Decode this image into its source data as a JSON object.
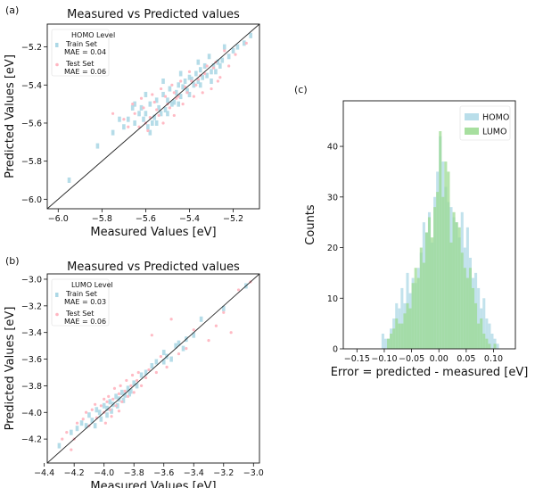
{
  "chart_data": [
    {
      "panel_label": "(a)",
      "type": "scatter",
      "title": "Measured vs Predicted values",
      "xlabel": "Measured Values [eV]",
      "ylabel": "Predicted Values [eV]",
      "xlim": [
        -6.05,
        -5.08
      ],
      "ylim": [
        -6.05,
        -5.08
      ],
      "xticks": [
        -6.0,
        -5.8,
        -5.6,
        -5.4,
        -5.2
      ],
      "yticks": [
        -6.0,
        -5.8,
        -5.6,
        -5.4,
        -5.2
      ],
      "xtick_labels": [
        "−6.0",
        "−5.8",
        "−5.6",
        "−5.4",
        "−5.2"
      ],
      "ytick_labels": [
        "−6.0",
        "−5.8",
        "−5.6",
        "−5.4",
        "−5.2"
      ],
      "legend": {
        "title": "HOMO Level",
        "entries": [
          {
            "label": "Train Set",
            "sub": "MAE = 0.04",
            "color": "#add8e6"
          },
          {
            "label": "Test Set",
            "sub": "MAE = 0.06",
            "color": "#ffb6c1"
          }
        ],
        "position": "top-left"
      },
      "reference_line": "y = x",
      "series": [
        {
          "name": "Train Set",
          "mae": 0.04,
          "color": "#add8e6",
          "points": [
            [
              -5.95,
              -5.9
            ],
            [
              -5.82,
              -5.72
            ],
            [
              -5.75,
              -5.65
            ],
            [
              -5.7,
              -5.62
            ],
            [
              -5.68,
              -5.58
            ],
            [
              -5.65,
              -5.6
            ],
            [
              -5.63,
              -5.55
            ],
            [
              -5.62,
              -5.52
            ],
            [
              -5.6,
              -5.55
            ],
            [
              -5.58,
              -5.5
            ],
            [
              -5.57,
              -5.6
            ],
            [
              -5.55,
              -5.48
            ],
            [
              -5.54,
              -5.52
            ],
            [
              -5.52,
              -5.45
            ],
            [
              -5.5,
              -5.48
            ],
            [
              -5.49,
              -5.42
            ],
            [
              -5.48,
              -5.5
            ],
            [
              -5.46,
              -5.44
            ],
            [
              -5.45,
              -5.4
            ],
            [
              -5.44,
              -5.46
            ],
            [
              -5.42,
              -5.38
            ],
            [
              -5.41,
              -5.43
            ],
            [
              -5.4,
              -5.36
            ],
            [
              -5.38,
              -5.4
            ],
            [
              -5.37,
              -5.34
            ],
            [
              -5.36,
              -5.38
            ],
            [
              -5.35,
              -5.32
            ],
            [
              -5.34,
              -5.36
            ],
            [
              -5.33,
              -5.3
            ],
            [
              -5.32,
              -5.35
            ],
            [
              -5.3,
              -5.33
            ],
            [
              -5.29,
              -5.3
            ],
            [
              -5.28,
              -5.33
            ],
            [
              -5.27,
              -5.28
            ],
            [
              -5.26,
              -5.3
            ],
            [
              -5.25,
              -5.27
            ],
            [
              -5.22,
              -5.25
            ],
            [
              -5.2,
              -5.22
            ],
            [
              -5.18,
              -5.2
            ],
            [
              -5.15,
              -5.18
            ],
            [
              -5.12,
              -5.14
            ],
            [
              -5.59,
              -5.62
            ],
            [
              -5.56,
              -5.57
            ],
            [
              -5.53,
              -5.55
            ],
            [
              -5.51,
              -5.53
            ],
            [
              -5.47,
              -5.49
            ],
            [
              -5.43,
              -5.41
            ],
            [
              -5.39,
              -5.37
            ],
            [
              -5.65,
              -5.5
            ],
            [
              -5.6,
              -5.45
            ],
            [
              -5.58,
              -5.65
            ],
            [
              -5.61,
              -5.58
            ],
            [
              -5.55,
              -5.6
            ],
            [
              -5.5,
              -5.55
            ],
            [
              -5.45,
              -5.5
            ],
            [
              -5.4,
              -5.45
            ],
            [
              -5.35,
              -5.4
            ],
            [
              -5.3,
              -5.38
            ],
            [
              -5.72,
              -5.58
            ],
            [
              -5.66,
              -5.52
            ],
            [
              -5.52,
              -5.38
            ],
            [
              -5.44,
              -5.34
            ],
            [
              -5.36,
              -5.28
            ],
            [
              -5.31,
              -5.25
            ],
            [
              -5.24,
              -5.2
            ]
          ]
        },
        {
          "name": "Test Set",
          "mae": 0.06,
          "color": "#ffb6c1",
          "points": [
            [
              -5.7,
              -5.58
            ],
            [
              -5.66,
              -5.5
            ],
            [
              -5.62,
              -5.47
            ],
            [
              -5.6,
              -5.6
            ],
            [
              -5.57,
              -5.45
            ],
            [
              -5.55,
              -5.53
            ],
            [
              -5.53,
              -5.42
            ],
            [
              -5.52,
              -5.6
            ],
            [
              -5.5,
              -5.5
            ],
            [
              -5.48,
              -5.4
            ],
            [
              -5.47,
              -5.56
            ],
            [
              -5.46,
              -5.47
            ],
            [
              -5.44,
              -5.38
            ],
            [
              -5.43,
              -5.5
            ],
            [
              -5.41,
              -5.44
            ],
            [
              -5.4,
              -5.33
            ],
            [
              -5.38,
              -5.46
            ],
            [
              -5.37,
              -5.4
            ],
            [
              -5.35,
              -5.35
            ],
            [
              -5.34,
              -5.44
            ],
            [
              -5.32,
              -5.3
            ],
            [
              -5.3,
              -5.42
            ],
            [
              -5.28,
              -5.28
            ],
            [
              -5.26,
              -5.36
            ],
            [
              -5.24,
              -5.22
            ],
            [
              -5.22,
              -5.3
            ],
            [
              -5.19,
              -5.24
            ],
            [
              -5.14,
              -5.18
            ],
            [
              -5.63,
              -5.62
            ],
            [
              -5.58,
              -5.57
            ],
            [
              -5.54,
              -5.56
            ],
            [
              -5.49,
              -5.52
            ],
            [
              -5.45,
              -5.46
            ],
            [
              -5.42,
              -5.41
            ],
            [
              -5.36,
              -5.37
            ],
            [
              -5.65,
              -5.55
            ],
            [
              -5.61,
              -5.52
            ],
            [
              -5.56,
              -5.49
            ],
            [
              -5.51,
              -5.46
            ],
            [
              -5.47,
              -5.44
            ],
            [
              -5.39,
              -5.38
            ],
            [
              -5.33,
              -5.34
            ],
            [
              -5.29,
              -5.31
            ],
            [
              -5.75,
              -5.55
            ],
            [
              -5.68,
              -5.62
            ],
            [
              -5.59,
              -5.64
            ],
            [
              -5.27,
              -5.38
            ]
          ]
        }
      ]
    },
    {
      "panel_label": "(b)",
      "type": "scatter",
      "title": "Measured vs Predicted values",
      "xlabel": "Measured Values [eV]",
      "ylabel": "Predicted Values [eV]",
      "xlim": [
        -4.38,
        -2.96
      ],
      "ylim": [
        -4.38,
        -2.96
      ],
      "xticks": [
        -4.4,
        -4.2,
        -4.0,
        -3.8,
        -3.6,
        -3.4,
        -3.2,
        -3.0
      ],
      "yticks": [
        -4.2,
        -4.0,
        -3.8,
        -3.6,
        -3.4,
        -3.2,
        -3.0
      ],
      "xtick_labels": [
        "−4.4",
        "−4.2",
        "−4.0",
        "−3.8",
        "−3.6",
        "−3.4",
        "−3.2",
        "−3.0"
      ],
      "ytick_labels": [
        "−4.2",
        "−4.0",
        "−3.8",
        "−3.6",
        "−3.4",
        "−3.2",
        "−3.0"
      ],
      "legend": {
        "title": "LUMO Level",
        "entries": [
          {
            "label": "Train Set",
            "sub": "MAE = 0.03",
            "color": "#add8e6"
          },
          {
            "label": "Test Set",
            "sub": "MAE = 0.06",
            "color": "#ffb6c1"
          }
        ],
        "position": "top-left"
      },
      "reference_line": "y = x",
      "series": [
        {
          "name": "Train Set",
          "mae": 0.03,
          "color": "#add8e6",
          "points": [
            [
              -4.3,
              -4.25
            ],
            [
              -4.22,
              -4.15
            ],
            [
              -4.18,
              -4.12
            ],
            [
              -4.15,
              -4.08
            ],
            [
              -4.12,
              -4.1
            ],
            [
              -4.1,
              -4.02
            ],
            [
              -4.08,
              -4.06
            ],
            [
              -4.05,
              -3.98
            ],
            [
              -4.03,
              -4.0
            ],
            [
              -4.0,
              -3.95
            ],
            [
              -3.98,
              -3.97
            ],
            [
              -3.96,
              -3.92
            ],
            [
              -3.94,
              -3.94
            ],
            [
              -3.92,
              -3.88
            ],
            [
              -3.9,
              -3.9
            ],
            [
              -3.88,
              -3.85
            ],
            [
              -3.86,
              -3.87
            ],
            [
              -3.84,
              -3.82
            ],
            [
              -3.82,
              -3.84
            ],
            [
              -3.8,
              -3.78
            ],
            [
              -3.78,
              -3.8
            ],
            [
              -3.75,
              -3.72
            ],
            [
              -3.72,
              -3.7
            ],
            [
              -3.68,
              -3.65
            ],
            [
              -3.65,
              -3.62
            ],
            [
              -3.6,
              -3.55
            ],
            [
              -3.55,
              -3.6
            ],
            [
              -3.5,
              -3.48
            ],
            [
              -3.45,
              -3.45
            ],
            [
              -3.4,
              -3.42
            ],
            [
              -3.35,
              -3.3
            ],
            [
              -3.2,
              -3.22
            ],
            [
              -3.05,
              -3.05
            ],
            [
              -3.98,
              -4.02
            ],
            [
              -3.95,
              -3.99
            ],
            [
              -3.91,
              -3.95
            ],
            [
              -3.87,
              -3.91
            ],
            [
              -3.83,
              -3.86
            ],
            [
              -4.06,
              -4.1
            ],
            [
              -4.02,
              -4.05
            ],
            [
              -3.6,
              -3.62
            ],
            [
              -3.58,
              -3.58
            ],
            [
              -3.52,
              -3.5
            ],
            [
              -3.47,
              -3.52
            ]
          ]
        },
        {
          "name": "Test Set",
          "mae": 0.06,
          "color": "#ffb6c1",
          "points": [
            [
              -4.25,
              -4.15
            ],
            [
              -4.18,
              -4.08
            ],
            [
              -4.14,
              -4.05
            ],
            [
              -4.1,
              -4.1
            ],
            [
              -4.08,
              -3.98
            ],
            [
              -4.05,
              -4.04
            ],
            [
              -4.02,
              -3.95
            ],
            [
              -4.0,
              -4.0
            ],
            [
              -3.98,
              -3.92
            ],
            [
              -3.96,
              -3.98
            ],
            [
              -3.94,
              -3.9
            ],
            [
              -3.92,
              -3.95
            ],
            [
              -3.9,
              -3.86
            ],
            [
              -3.88,
              -3.92
            ],
            [
              -3.86,
              -3.84
            ],
            [
              -3.84,
              -3.88
            ],
            [
              -3.82,
              -3.8
            ],
            [
              -3.8,
              -3.85
            ],
            [
              -3.78,
              -3.76
            ],
            [
              -3.75,
              -3.8
            ],
            [
              -3.72,
              -3.74
            ],
            [
              -3.7,
              -3.68
            ],
            [
              -3.65,
              -3.7
            ],
            [
              -3.62,
              -3.58
            ],
            [
              -3.58,
              -3.66
            ],
            [
              -3.5,
              -3.56
            ],
            [
              -3.45,
              -3.52
            ],
            [
              -3.4,
              -3.38
            ],
            [
              -3.3,
              -3.46
            ],
            [
              -3.2,
              -3.25
            ],
            [
              -3.15,
              -3.4
            ],
            [
              -3.1,
              -3.08
            ],
            [
              -3.02,
              -3.02
            ],
            [
              -4.2,
              -4.2
            ],
            [
              -4.12,
              -4.0
            ],
            [
              -4.06,
              -3.94
            ],
            [
              -4.0,
              -3.9
            ],
            [
              -3.97,
              -3.88
            ],
            [
              -3.93,
              -3.82
            ],
            [
              -3.89,
              -3.8
            ],
            [
              -3.85,
              -3.76
            ],
            [
              -3.81,
              -3.72
            ],
            [
              -3.77,
              -3.7
            ],
            [
              -3.99,
              -4.08
            ],
            [
              -3.95,
              -4.03
            ],
            [
              -3.9,
              -3.99
            ],
            [
              -4.28,
              -4.2
            ],
            [
              -4.22,
              -4.28
            ],
            [
              -3.68,
              -3.42
            ],
            [
              -3.55,
              -3.3
            ],
            [
              -3.25,
              -3.35
            ]
          ]
        }
      ]
    },
    {
      "panel_label": "(c)",
      "type": "histogram",
      "title": "",
      "xlabel": "Error = predicted - measured [eV]",
      "ylabel": "Counts",
      "xlim": [
        -0.175,
        0.14
      ],
      "ylim": [
        0,
        49
      ],
      "xticks": [
        -0.15,
        -0.1,
        -0.05,
        0.0,
        0.05,
        0.1
      ],
      "yticks": [
        0,
        10,
        20,
        30,
        40
      ],
      "xtick_labels": [
        "−0.15",
        "−0.10",
        "−0.05",
        "0.00",
        "0.05",
        "0.10"
      ],
      "ytick_labels": [
        "0",
        "10",
        "20",
        "30",
        "40"
      ],
      "bin_start": -0.11,
      "bin_width": 0.005,
      "legend": {
        "position": "top-right"
      },
      "series": [
        {
          "name": "HOMO",
          "color": "#add8e6",
          "values": [
            0,
            3,
            2,
            2,
            4,
            6,
            9,
            8,
            12,
            9,
            15,
            11,
            14,
            13,
            16,
            19,
            25,
            23,
            27,
            21,
            30,
            35,
            42,
            37,
            32,
            29,
            28,
            26,
            25,
            22,
            27,
            20,
            24,
            18,
            14,
            15,
            12,
            8,
            10,
            6,
            5,
            3,
            2,
            1
          ]
        },
        {
          "name": "LUMO",
          "color": "#98d98e",
          "values": [
            0,
            0,
            0,
            2,
            3,
            4,
            6,
            5,
            5,
            7,
            9,
            8,
            13,
            16,
            14,
            20,
            17,
            23,
            26,
            22,
            28,
            31,
            43,
            30,
            37,
            35,
            21,
            27,
            25,
            24,
            19,
            16,
            14,
            16,
            12,
            9,
            5,
            6,
            3,
            2,
            1,
            0,
            1,
            0
          ]
        }
      ]
    }
  ]
}
